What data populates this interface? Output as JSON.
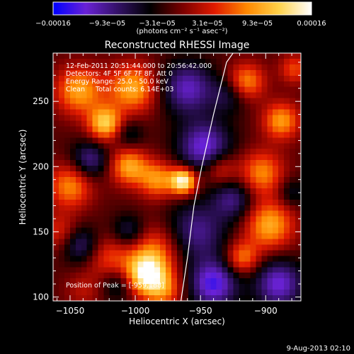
{
  "chart_data": {
    "type": "heatmap",
    "title": "Reconstructed RHESSI Image",
    "xlabel": "Heliocentric X (arcsec)",
    "ylabel": "Heliocentric Y (arcsec)",
    "xlim": [
      -1063,
      -873
    ],
    "ylim": [
      97,
      287
    ],
    "x_ticks": [
      -1050,
      -1000,
      -950,
      -900
    ],
    "x_tick_labels": [
      "−1050",
      "−1000",
      "−950",
      "−900"
    ],
    "y_ticks": [
      100,
      150,
      200,
      250
    ],
    "y_tick_labels": [
      "100",
      "150",
      "200",
      "250"
    ],
    "colorbar": {
      "range": [
        -0.00016,
        0.00016
      ],
      "tick_values": [
        -0.00016,
        -9.3e-05,
        -3.1e-05,
        3.1e-05,
        9.3e-05,
        0.00016
      ],
      "tick_labels": [
        "−0.00016",
        "−9.3e−05",
        "−3.1e−05",
        "3.1e−05",
        "9.3e−05",
        "0.00016"
      ],
      "unit_label": "(photons cm⁻² s⁻¹ asec⁻²)",
      "colormap": [
        "#0000ff",
        "#6a22d6",
        "#331166",
        "#000000",
        "#7a0000",
        "#e01a00",
        "#ff8800",
        "#ffd24a",
        "#ffffff"
      ]
    },
    "annotations": [
      "12-Feb-2011 20:51:44.000 to 20:56:42.000",
      "Detectors: 4F 5F 6F 7F 8F, Att 0",
      "Energy Range: 25.0 - 50.0 keV",
      "Clean     Total counts: 6.14E+03"
    ],
    "peak_label": "Position of Peak = [-959,188]",
    "peak": [
      -959,
      188
    ],
    "limb_curve": [
      [
        -965,
        97
      ],
      [
        -960,
        130
      ],
      [
        -955,
        170
      ],
      [
        -949,
        200
      ],
      [
        -940,
        240
      ],
      [
        -930,
        280
      ],
      [
        -925,
        287
      ]
    ],
    "sources": [
      {
        "x": -992,
        "y": 117,
        "v": 1.7,
        "s": 11
      },
      {
        "x": -985,
        "y": 135,
        "v": 0.9,
        "s": 14
      },
      {
        "x": -1023,
        "y": 233,
        "v": 1.45,
        "s": 9
      },
      {
        "x": -1043,
        "y": 258,
        "v": 1.2,
        "s": 13
      },
      {
        "x": -1002,
        "y": 260,
        "v": 1.25,
        "s": 13
      },
      {
        "x": -1005,
        "y": 200,
        "v": 1.2,
        "s": 10
      },
      {
        "x": -983,
        "y": 190,
        "v": 1.1,
        "s": 10
      },
      {
        "x": -963,
        "y": 189,
        "v": 1.9,
        "s": 7
      },
      {
        "x": -1050,
        "y": 185,
        "v": 1.05,
        "s": 12
      },
      {
        "x": -1020,
        "y": 130,
        "v": 0.7,
        "s": 12
      },
      {
        "x": -1040,
        "y": 105,
        "v": 0.4,
        "s": 10
      },
      {
        "x": -978,
        "y": 105,
        "v": 0.85,
        "s": 10
      },
      {
        "x": -1058,
        "y": 150,
        "v": 0.6,
        "s": 10
      },
      {
        "x": -1035,
        "y": 205,
        "v": -0.9,
        "s": 10
      },
      {
        "x": -1042,
        "y": 140,
        "v": -0.8,
        "s": 10
      },
      {
        "x": -1005,
        "y": 150,
        "v": -0.7,
        "s": 9
      },
      {
        "x": -1013,
        "y": 110,
        "v": -0.6,
        "s": 9
      },
      {
        "x": -1005,
        "y": 225,
        "v": -0.5,
        "s": 8
      },
      {
        "x": -960,
        "y": 260,
        "v": -1.1,
        "s": 14
      },
      {
        "x": -947,
        "y": 215,
        "v": -1.25,
        "s": 14
      },
      {
        "x": -953,
        "y": 150,
        "v": -0.9,
        "s": 16
      },
      {
        "x": -940,
        "y": 110,
        "v": -1.35,
        "s": 13
      },
      {
        "x": -925,
        "y": 175,
        "v": -0.85,
        "s": 11
      },
      {
        "x": -928,
        "y": 255,
        "v": -0.6,
        "s": 10
      },
      {
        "x": -890,
        "y": 110,
        "v": -1.2,
        "s": 13
      },
      {
        "x": -903,
        "y": 195,
        "v": 1.05,
        "s": 12
      },
      {
        "x": -897,
        "y": 155,
        "v": 1.25,
        "s": 13
      },
      {
        "x": -915,
        "y": 265,
        "v": 1.1,
        "s": 10
      },
      {
        "x": -888,
        "y": 235,
        "v": 1.15,
        "s": 10
      },
      {
        "x": -935,
        "y": 198,
        "v": 0.75,
        "s": 9
      },
      {
        "x": -918,
        "y": 130,
        "v": 1.0,
        "s": 9
      },
      {
        "x": -878,
        "y": 275,
        "v": 0.75,
        "s": 8
      },
      {
        "x": -880,
        "y": 180,
        "v": -0.5,
        "s": 8
      }
    ]
  },
  "footer_date": "9-Aug-2013 02:10"
}
